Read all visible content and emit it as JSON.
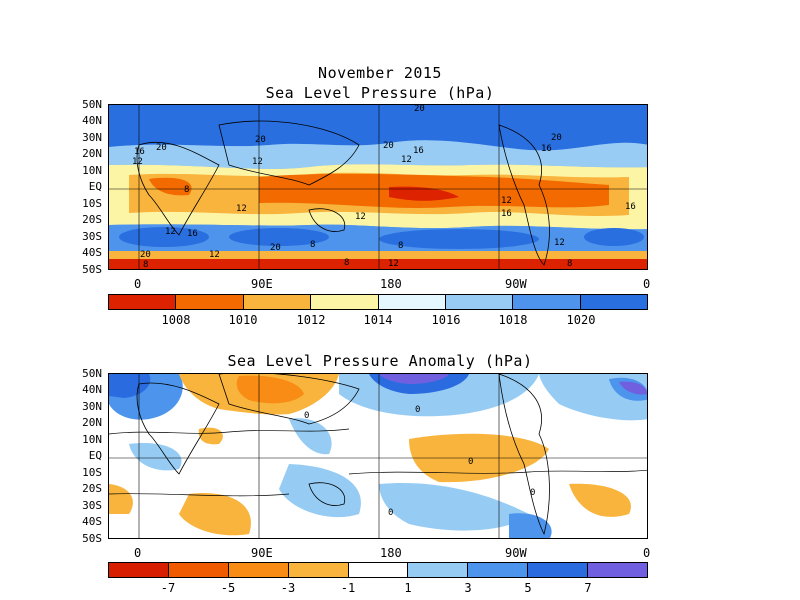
{
  "figure": {
    "month": "November 2015",
    "map1_title": "Sea Level Pressure (hPa)",
    "map2_title": "Sea Level Pressure Anomaly (hPa)"
  },
  "axes": {
    "lat_labels": [
      "50N",
      "40N",
      "30N",
      "20N",
      "10N",
      "EQ",
      "10S",
      "20S",
      "30S",
      "40S",
      "50S"
    ],
    "lon_labels": [
      "0",
      "90E",
      "180",
      "90W",
      "0"
    ]
  },
  "map1": {
    "contour_labels": [
      "20",
      "20",
      "20",
      "20",
      "20",
      "20",
      "20",
      "16",
      "16",
      "16",
      "16",
      "16",
      "16",
      "12",
      "12",
      "12",
      "12",
      "12",
      "12",
      "12",
      "12",
      "12",
      "12",
      "8",
      "8",
      "8",
      "8",
      "8",
      "8"
    ],
    "colorbar": {
      "labels": [
        "1008",
        "1010",
        "1012",
        "1014",
        "1016",
        "1018",
        "1020"
      ],
      "colors": [
        "#dd2200",
        "#f26a00",
        "#f8b43c",
        "#fdf5a6",
        "#e6f8ff",
        "#98ccf4",
        "#4e94ec",
        "#2a6fe0"
      ]
    }
  },
  "map2": {
    "contour_labels": [
      "0",
      "0",
      "0",
      "0",
      "0"
    ],
    "colorbar": {
      "labels": [
        "-7",
        "-5",
        "-3",
        "-1",
        "1",
        "3",
        "5",
        "7"
      ],
      "colors": [
        "#d81e00",
        "#f05a00",
        "#f88c14",
        "#f8b43c",
        "#ffffff",
        "#96ccf4",
        "#4c94ec",
        "#2a6ce0",
        "#7060e0"
      ]
    }
  }
}
